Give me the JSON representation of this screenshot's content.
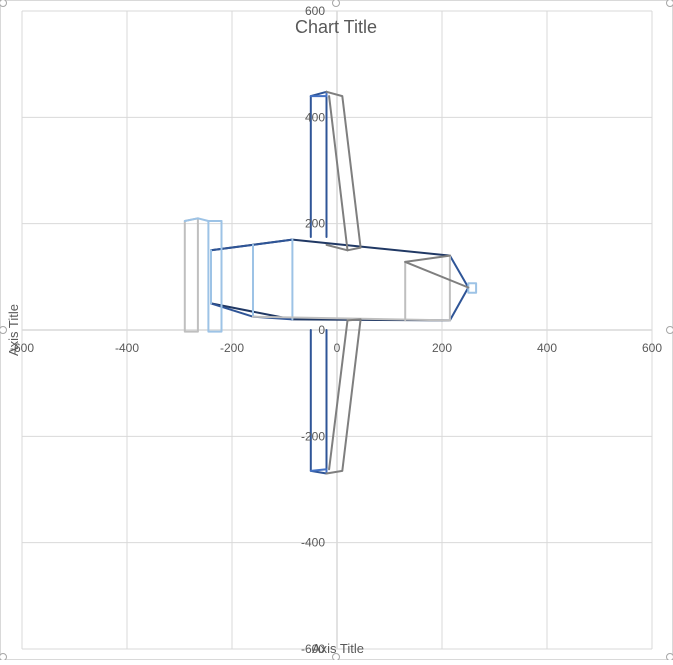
{
  "chart_data": {
    "type": "scatter",
    "subtype": "wireframe-lines",
    "title": "Chart Title",
    "xlabel": "Axis Title",
    "ylabel": "Axis Title",
    "xlim": [
      -600,
      600
    ],
    "ylim": [
      -600,
      600
    ],
    "xticks": [
      -600,
      -400,
      -200,
      0,
      200,
      400,
      600
    ],
    "yticks": [
      -600,
      -400,
      -200,
      0,
      200,
      400,
      600
    ],
    "xtick_labels": [
      "-600",
      "-400",
      "-200",
      "0",
      "200",
      "400",
      "600"
    ],
    "ytick_labels": [
      "-600",
      "-400",
      "-200",
      "0",
      "200",
      "400",
      "600"
    ],
    "grid": true,
    "legend": "none",
    "colors": {
      "dark_navy": "#203864",
      "blue": "#2f5597",
      "mid_blue": "#4472c4",
      "light_blue": "#9dc3e6",
      "gray": "#7f7f7f",
      "light_gray": "#bfbfbf"
    },
    "series": [
      {
        "color": "#203864",
        "points": [
          [
            -240,
            150
          ],
          [
            -85,
            170
          ],
          [
            215,
            140
          ]
        ]
      },
      {
        "color": "#203864",
        "points": [
          [
            -240,
            50
          ],
          [
            -85,
            20
          ],
          [
            215,
            18
          ]
        ]
      },
      {
        "color": "#2f5597",
        "points": [
          [
            -240,
            150
          ],
          [
            -160,
            160
          ],
          [
            -85,
            170
          ]
        ]
      },
      {
        "color": "#2f5597",
        "points": [
          [
            -240,
            50
          ],
          [
            -160,
            25
          ],
          [
            -85,
            20
          ]
        ]
      },
      {
        "color": "#2f5597",
        "points": [
          [
            215,
            140
          ],
          [
            250,
            80
          ],
          [
            215,
            18
          ]
        ]
      },
      {
        "color": "#9dc3e6",
        "points": [
          [
            -160,
            160
          ],
          [
            -160,
            25
          ]
        ]
      },
      {
        "color": "#9dc3e6",
        "points": [
          [
            -85,
            170
          ],
          [
            -85,
            20
          ]
        ]
      },
      {
        "color": "#9dc3e6",
        "points": [
          [
            -240,
            150
          ],
          [
            -240,
            50
          ]
        ]
      },
      {
        "color": "#9dc3e6",
        "points": [
          [
            250,
            88
          ],
          [
            265,
            88
          ],
          [
            265,
            70
          ],
          [
            250,
            70
          ],
          [
            250,
            88
          ]
        ]
      },
      {
        "color": "#bfbfbf",
        "points": [
          [
            130,
            128
          ],
          [
            130,
            18
          ]
        ]
      },
      {
        "color": "#bfbfbf",
        "points": [
          [
            215,
            140
          ],
          [
            215,
            18
          ]
        ]
      },
      {
        "color": "#bfbfbf",
        "points": [
          [
            -160,
            25
          ],
          [
            215,
            18
          ]
        ]
      },
      {
        "color": "#7f7f7f",
        "points": [
          [
            130,
            128
          ],
          [
            215,
            140
          ]
        ]
      },
      {
        "color": "#7f7f7f",
        "points": [
          [
            130,
            128
          ],
          [
            250,
            80
          ]
        ]
      },
      {
        "color": "#9dc3e6",
        "points": [
          [
            -245,
            -3
          ],
          [
            -245,
            205
          ],
          [
            -220,
            205
          ],
          [
            -220,
            -3
          ],
          [
            -245,
            -3
          ]
        ]
      },
      {
        "color": "#bfbfbf",
        "points": [
          [
            -290,
            -3
          ],
          [
            -290,
            205
          ],
          [
            -265,
            210
          ],
          [
            -265,
            -3
          ],
          [
            -290,
            -3
          ]
        ]
      },
      {
        "color": "#9dc3e6",
        "points": [
          [
            -290,
            205
          ],
          [
            -265,
            210
          ],
          [
            -245,
            205
          ],
          [
            -220,
            205
          ]
        ]
      },
      {
        "color": "#2f5597",
        "points": [
          [
            -50,
            440
          ],
          [
            -20,
            448
          ],
          [
            -20,
            175
          ]
        ]
      },
      {
        "color": "#2f5597",
        "points": [
          [
            -50,
            440
          ],
          [
            -50,
            175
          ]
        ]
      },
      {
        "color": "#4472c4",
        "points": [
          [
            -50,
            440
          ],
          [
            -20,
            440
          ],
          [
            -20,
            448
          ]
        ]
      },
      {
        "color": "#7f7f7f",
        "points": [
          [
            -20,
            448
          ],
          [
            10,
            440
          ],
          [
            45,
            155
          ],
          [
            20,
            150
          ],
          [
            -15,
            440
          ]
        ]
      },
      {
        "color": "#7f7f7f",
        "points": [
          [
            -20,
            160
          ],
          [
            20,
            150
          ]
        ]
      },
      {
        "color": "#2f5597",
        "points": [
          [
            -50,
            0
          ],
          [
            -50,
            -265
          ],
          [
            -20,
            -270
          ],
          [
            -20,
            0
          ]
        ]
      },
      {
        "color": "#4472c4",
        "points": [
          [
            -50,
            -265
          ],
          [
            -20,
            -262
          ],
          [
            -20,
            -270
          ]
        ]
      },
      {
        "color": "#7f7f7f",
        "points": [
          [
            -20,
            -270
          ],
          [
            10,
            -265
          ],
          [
            45,
            20
          ],
          [
            20,
            18
          ],
          [
            -15,
            -262
          ]
        ]
      }
    ]
  }
}
